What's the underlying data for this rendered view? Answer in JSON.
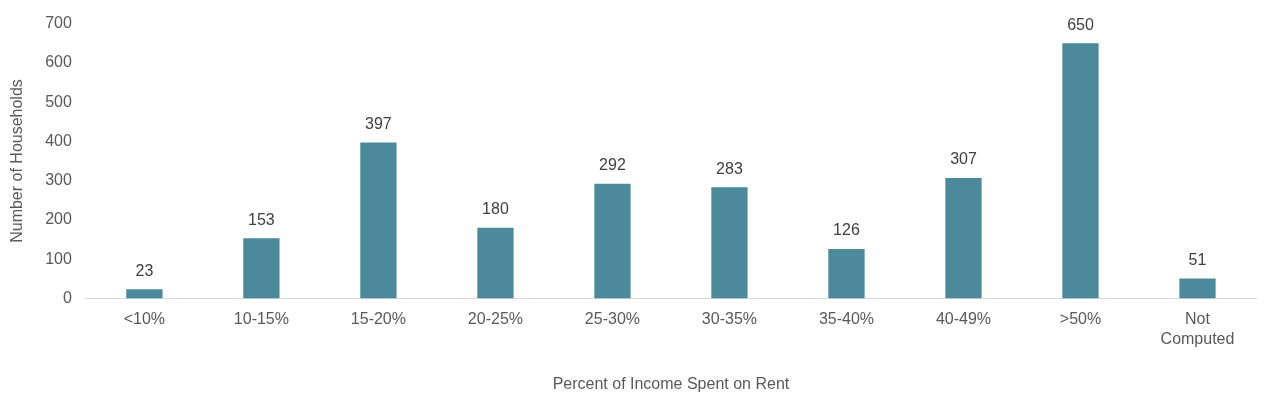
{
  "chart_data": {
    "type": "bar",
    "xlabel": "Percent of Income Spent on Rent",
    "ylabel": "Number of Households",
    "categories": [
      "<10%",
      "10-15%",
      "15-20%",
      "20-25%",
      "25-30%",
      "30-35%",
      "35-40%",
      "40-49%",
      ">50%",
      "Not Computed"
    ],
    "values": [
      23,
      153,
      397,
      180,
      292,
      283,
      126,
      307,
      650,
      51
    ],
    "color": "#4a8a9a",
    "ylim": [
      0,
      700
    ],
    "yticks": [
      0,
      100,
      200,
      300,
      400,
      500,
      600,
      700
    ],
    "grid": false,
    "legend": false,
    "data_labels": true
  }
}
